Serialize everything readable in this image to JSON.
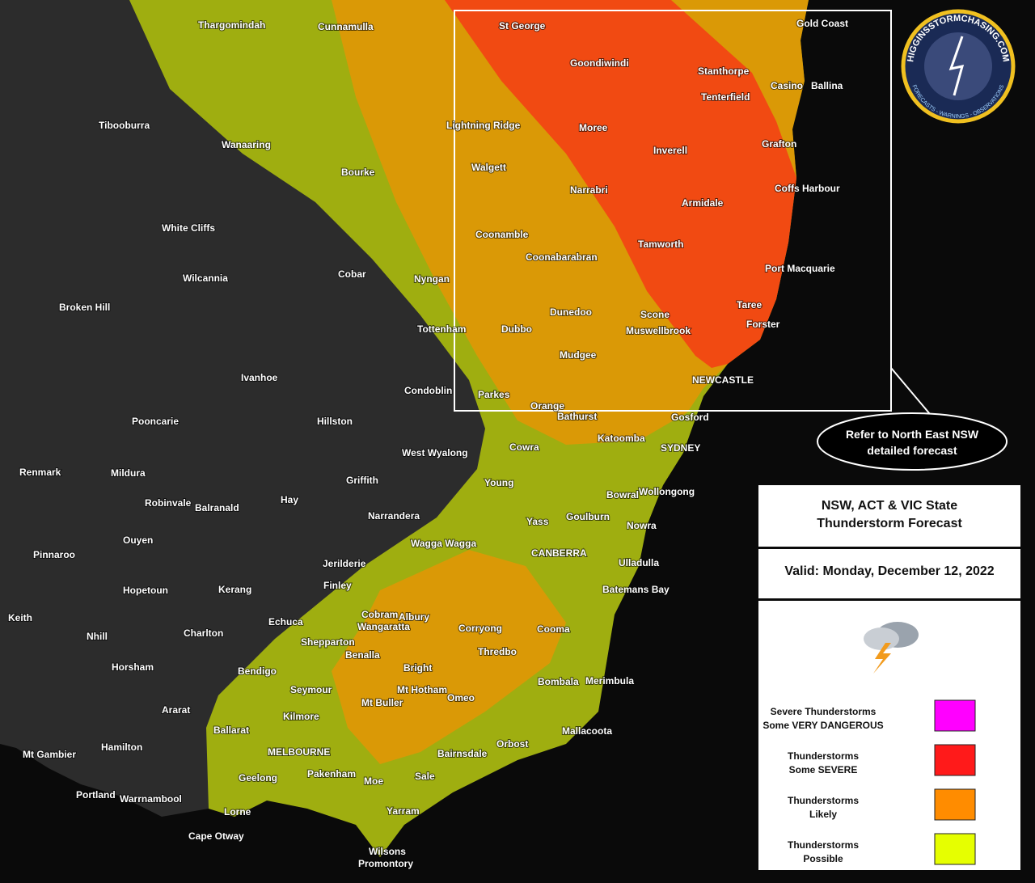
{
  "logo": {
    "name": "HIGGINSSTORMCHASING.COM",
    "tagline": "FORECASTS - WARNINGS - OBSERVATIONS"
  },
  "callout": {
    "lines": [
      "Refer to North East NSW",
      "detailed forecast"
    ]
  },
  "legend": {
    "title": [
      "NSW, ACT & VIC State",
      "Thunderstorm Forecast"
    ],
    "valid": "Valid: Monday, December 12, 2022",
    "items": [
      {
        "label": [
          "Severe Thunderstorms",
          "Some VERY DANGEROUS"
        ],
        "color": "#ff00ff"
      },
      {
        "label": [
          "Thunderstorms",
          "Some SEVERE"
        ],
        "color": "#ff1a1a"
      },
      {
        "label": [
          "Thunderstorms",
          "Likely"
        ],
        "color": "#ff8c00"
      },
      {
        "label": [
          "Thunderstorms",
          "Possible"
        ],
        "color": "#e6ff00"
      }
    ]
  },
  "places": [
    "Thargomindah",
    "Cunnamulla",
    "St George",
    "Gold Coast",
    "Goondiwindi",
    "Stanthorpe",
    "Casino",
    "Ballina",
    "Tenterfield",
    "Tibooburra",
    "Lightning Ridge",
    "Moree",
    "Wanaaring",
    "Inverell",
    "Grafton",
    "Bourke",
    "Walgett",
    "Narrabri",
    "Coffs Harbour",
    "Armidale",
    "White Cliffs",
    "Coonamble",
    "Tamworth",
    "Coonabarabran",
    "Port Macquarie",
    "Wilcannia",
    "Cobar",
    "Nyngan",
    "Broken Hill",
    "Taree",
    "Dunedoo",
    "Scone",
    "Tottenham",
    "Dubbo",
    "Muswellbrook",
    "Forster",
    "Mudgee",
    "Ivanhoe",
    "NEWCASTLE",
    "Condoblin",
    "Parkes",
    "Orange",
    "Bathurst",
    "Gosford",
    "Pooncarie",
    "Hillston",
    "Katoomba",
    "SYDNEY",
    "Cowra",
    "West Wyalong",
    "Renmark",
    "Mildura",
    "Griffith",
    "Young",
    "Bowral",
    "Wollongong",
    "Hay",
    "Robinvale",
    "Balranald",
    "Narrandera",
    "Yass",
    "Goulburn",
    "Nowra",
    "Ouyen",
    "Wagga Wagga",
    "CANBERRA",
    "Pinnaroo",
    "Jerilderie",
    "Ulladulla",
    "Finley",
    "Hopetoun",
    "Kerang",
    "Batemans Bay",
    "Keith",
    "Echuca",
    "Cobram",
    "Albury",
    "Corryong",
    "Cooma",
    "Nhill",
    "Charlton",
    "Wangaratta",
    "Shepparton",
    "Benalla",
    "Thredbo",
    "Horsham",
    "Bendigo",
    "Bright",
    "Bombala",
    "Merimbula",
    "Seymour",
    "Mt Hotham",
    "Omeo",
    "Mt Buller",
    "Ararat",
    "Kilmore",
    "Ballarat",
    "Mallacoota",
    "Orbost",
    "Hamilton",
    "MELBOURNE",
    "Bairnsdale",
    "Mt Gambier",
    "Geelong",
    "Pakenham",
    "Moe",
    "Sale",
    "Portland",
    "Warrnambool",
    "Lorne",
    "Yarram",
    "Cape Otway",
    "Wilsons",
    "Promontory"
  ]
}
